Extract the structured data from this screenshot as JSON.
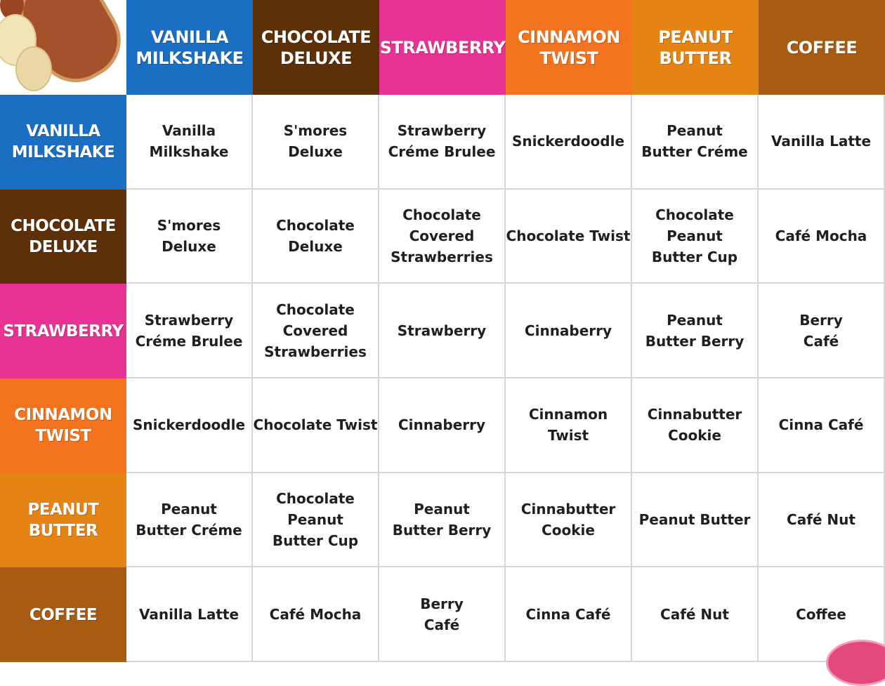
{
  "flavors": [
    {
      "label": "VANILLA\nMILKSHAKE",
      "color": "#1b6fc2"
    },
    {
      "label": "CHOCOLATE\nDELUXE",
      "color": "#5e3008"
    },
    {
      "label": "STRAWBERRY",
      "color": "#e93394"
    },
    {
      "label": "CINNAMON\nTWIST",
      "color": "#f3731f"
    },
    {
      "label": "PEANUT\nBUTTER",
      "color": "#e58413"
    },
    {
      "label": "COFFEE",
      "color": "#a85c13"
    }
  ],
  "grid": [
    [
      "Vanilla\nMilkshake",
      "S'mores\nDeluxe",
      "Strawberry\nCréme Brulee",
      "Snickerdoodle",
      "Peanut\nButter Créme",
      "Vanilla Latte"
    ],
    [
      "S'mores\nDeluxe",
      "Chocolate\nDeluxe",
      "Chocolate\nCovered\nStrawberries",
      "Chocolate Twist",
      "Chocolate\nPeanut\nButter Cup",
      "Café Mocha"
    ],
    [
      "Strawberry\nCréme Brulee",
      "Chocolate\nCovered\nStrawberries",
      "Strawberry",
      "Cinnaberry",
      "Peanut\nButter Berry",
      "Berry\nCafé"
    ],
    [
      "Snickerdoodle",
      "Chocolate Twist",
      "Cinnaberry",
      "Cinnamon\nTwist",
      "Cinnabutter\nCookie",
      "Cinna Café"
    ],
    [
      "Peanut\nButter Créme",
      "Chocolate\nPeanut\nButter Cup",
      "Peanut\nButter Berry",
      "Cinnabutter\nCookie",
      "Peanut Butter",
      "Café Nut"
    ],
    [
      "Vanilla Latte",
      "Café Mocha",
      "Berry\nCafé",
      "Cinna Café",
      "Café Nut",
      "Coffee"
    ]
  ],
  "decorations": {
    "corner_image": "peanut-image",
    "bottom_right_image": "donut-image"
  }
}
